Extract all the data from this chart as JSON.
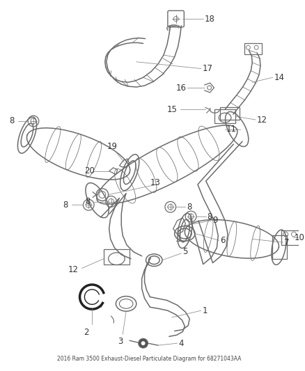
{
  "title": "2016 Ram 3500 Exhaust-Diesel Particulate Diagram for 68271043AA",
  "background_color": "#ffffff",
  "line_color": "#6b6b6b",
  "label_color": "#333333",
  "fig_width": 4.38,
  "fig_height": 5.33,
  "dpi": 100,
  "font_size": 8.5,
  "lw_main": 1.1,
  "lw_thin": 0.65,
  "lw_leader": 0.55
}
